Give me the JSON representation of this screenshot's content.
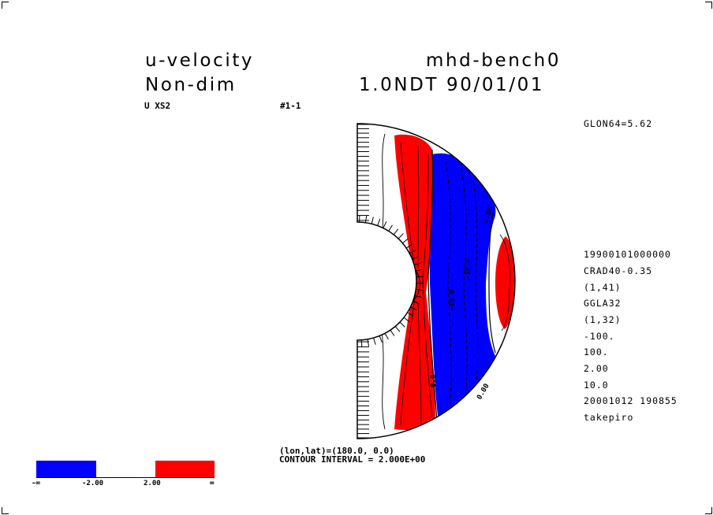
{
  "header": {
    "variable": "u-velocity",
    "experiment": "mhd-bench0",
    "units": "Non-dim",
    "time_label": "1.0NDT 90/01/01",
    "field_label": "U XS2",
    "frame_label": "#1-1"
  },
  "side_info": {
    "slice": "GLON64=5.62",
    "lines": [
      "19900101000000",
      "CRAD40-0.35",
      "(1,41)",
      "GGLA32",
      "(1,32)",
      "-100.",
      "100.",
      "2.00",
      "10.0",
      "20001012 190855",
      "takepiro"
    ]
  },
  "footer": {
    "position": "(lon,lat)=(180.0, 0.0)",
    "contour_interval": "CONTOUR INTERVAL = 2.000E+00"
  },
  "contour_labels": {
    "label_a": "0.00",
    "label_b": "-10.0",
    "label_c": "-10.0",
    "label_d": "0.0",
    "label_e": "0.00"
  },
  "colorbar": {
    "labels": [
      "-∞",
      "-2.00",
      "2.00",
      "∞"
    ],
    "negative_color": "#0000ff",
    "positive_color": "#ff0000",
    "neutral_color": "#ffffff"
  }
}
